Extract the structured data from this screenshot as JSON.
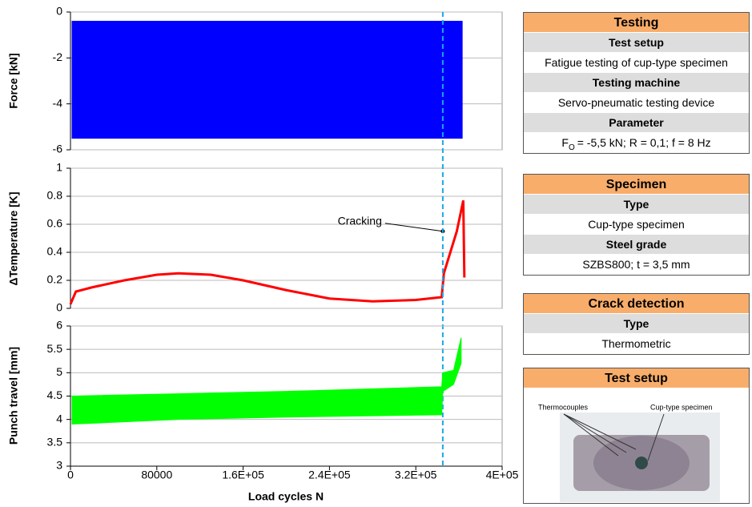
{
  "chart_data": [
    {
      "type": "band",
      "ylabel": "Force [kN]",
      "color": "#0000ff",
      "x": [
        1500,
        100000,
        200000,
        300000,
        363000
      ],
      "upper": [
        -0.4,
        -0.4,
        -0.4,
        -0.4,
        -0.4
      ],
      "lower": [
        -5.5,
        -5.5,
        -5.5,
        -5.5,
        -5.5
      ],
      "xlim": [
        0,
        400000
      ],
      "ylim": [
        -6,
        0
      ],
      "yticks": [
        0,
        -2,
        -4,
        -6
      ],
      "grid": true
    },
    {
      "type": "line",
      "ylabel": "ΔTemperature [K]",
      "color": "#ff0000",
      "x": [
        0,
        5000,
        20000,
        50000,
        80000,
        100000,
        130000,
        160000,
        200000,
        240000,
        280000,
        320000,
        344000,
        346000,
        350000,
        358000,
        364000,
        365000
      ],
      "values": [
        0.03,
        0.12,
        0.15,
        0.2,
        0.24,
        0.25,
        0.24,
        0.2,
        0.13,
        0.07,
        0.05,
        0.06,
        0.08,
        0.25,
        0.35,
        0.55,
        0.77,
        0.22
      ],
      "xlim": [
        0,
        400000
      ],
      "ylim": [
        0,
        1
      ],
      "yticks": [
        0,
        0.2,
        0.4,
        0.6,
        0.8,
        1
      ],
      "grid": true,
      "annotation": {
        "text": "Cracking",
        "x": 345000,
        "y": 0.55
      },
      "vline": 345000
    },
    {
      "type": "band",
      "ylabel": "Punch travel [mm]",
      "color": "#00ff00",
      "x": [
        1500,
        100000,
        200000,
        344000,
        345000,
        355000,
        362000
      ],
      "upper": [
        4.5,
        4.55,
        4.6,
        4.7,
        5.0,
        5.05,
        5.75
      ],
      "lower": [
        3.9,
        4.0,
        4.05,
        4.1,
        4.6,
        4.75,
        5.2
      ],
      "xlim": [
        0,
        400000
      ],
      "ylim": [
        3,
        6
      ],
      "yticks": [
        3,
        3.5,
        4,
        4.5,
        5,
        5.5,
        6
      ],
      "grid": true,
      "xticks": [
        0,
        80000,
        {
          "value": 160000,
          "label": "1.6E+05"
        },
        {
          "value": 240000,
          "label": "2.4E+05"
        },
        {
          "value": 320000,
          "label": "3.2E+05"
        },
        {
          "value": 400000,
          "label": "4E+05"
        }
      ],
      "xlabel": "Load cycles N"
    }
  ],
  "panels": [
    {
      "title": "Testing",
      "rows": [
        {
          "text": "Test setup",
          "header": true
        },
        {
          "text": "Fatigue testing of cup-type specimen"
        },
        {
          "text": "Testing machine",
          "header": true
        },
        {
          "text": "Servo-pneumatic testing device"
        },
        {
          "text": "Parameter",
          "header": true
        },
        {
          "symbol": "F",
          "subscript": "O",
          "text": "= -5,5 kN; R = 0,1; f = 8 Hz"
        }
      ]
    },
    {
      "title": "Specimen",
      "rows": [
        {
          "text": "Type",
          "header": true
        },
        {
          "text": "Cup-type specimen"
        },
        {
          "text": "Steel grade",
          "header": true
        },
        {
          "text": "SZBS800;  t = 3,5 mm"
        }
      ]
    },
    {
      "title": "Crack detection",
      "rows": [
        {
          "text": "Type",
          "header": true
        },
        {
          "text": "Thermometric"
        }
      ]
    }
  ],
  "photo": {
    "title": "Test setup",
    "labels": [
      "Thermocouples",
      "Cup-type specimen"
    ]
  }
}
